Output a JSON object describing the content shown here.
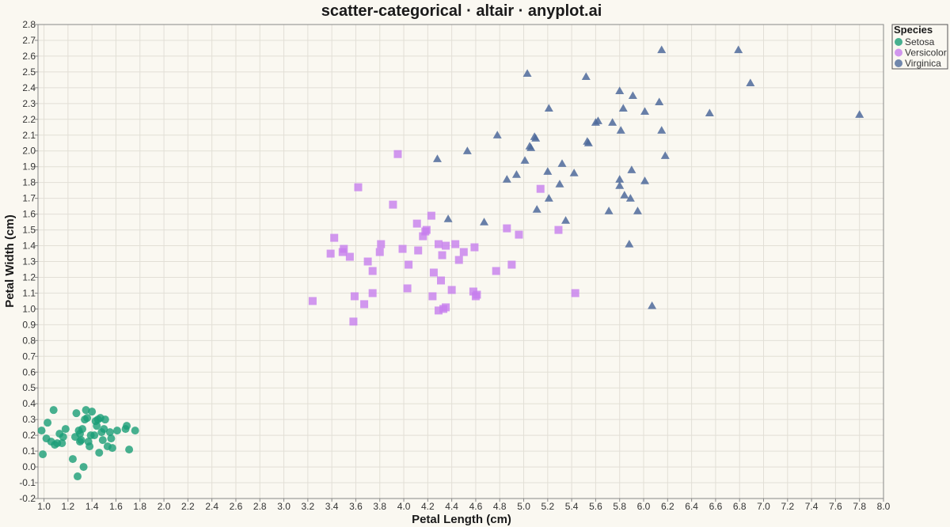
{
  "chart_data": {
    "type": "scatter",
    "title": "scatter-categorical · altair · anyplot.ai",
    "xlabel": "Petal Length (cm)",
    "ylabel": "Petal Width (cm)",
    "xlim": [
      0.95,
      8.0
    ],
    "ylim": [
      -0.2,
      2.8
    ],
    "xticks": [
      1.0,
      1.2,
      1.4,
      1.6,
      1.8,
      2.0,
      2.2,
      2.4,
      2.6,
      2.8,
      3.0,
      3.2,
      3.4,
      3.6,
      3.8,
      4.0,
      4.2,
      4.4,
      4.6,
      4.8,
      5.0,
      5.2,
      5.4,
      5.6,
      5.8,
      6.0,
      6.2,
      6.4,
      6.6,
      6.8,
      7.0,
      7.2,
      7.4,
      7.6,
      7.8,
      8.0
    ],
    "yticks": [
      -0.2,
      -0.1,
      0.0,
      0.1,
      0.2,
      0.3,
      0.4,
      0.5,
      0.6,
      0.7,
      0.8,
      0.9,
      1.0,
      1.1,
      1.2,
      1.3,
      1.4,
      1.5,
      1.6,
      1.7,
      1.8,
      1.9,
      2.0,
      2.1,
      2.2,
      2.3,
      2.4,
      2.5,
      2.6,
      2.7,
      2.8
    ],
    "grid": true,
    "legend": {
      "title": "Species",
      "placement": "top-right"
    },
    "series": [
      {
        "name": "Setosa",
        "color": "#1A9E77",
        "shape": "circle",
        "points": [
          [
            0.98,
            0.23
          ],
          [
            0.99,
            0.08
          ],
          [
            1.02,
            0.18
          ],
          [
            1.03,
            0.28
          ],
          [
            1.06,
            0.16
          ],
          [
            1.08,
            0.36
          ],
          [
            1.09,
            0.14
          ],
          [
            1.11,
            0.15
          ],
          [
            1.13,
            0.21
          ],
          [
            1.15,
            0.15
          ],
          [
            1.16,
            0.19
          ],
          [
            1.18,
            0.24
          ],
          [
            1.24,
            0.05
          ],
          [
            1.26,
            0.19
          ],
          [
            1.27,
            0.34
          ],
          [
            1.28,
            -0.06
          ],
          [
            1.29,
            0.23
          ],
          [
            1.3,
            0.21
          ],
          [
            1.3,
            0.16
          ],
          [
            1.31,
            0.17
          ],
          [
            1.32,
            0.24
          ],
          [
            1.33,
            0.0
          ],
          [
            1.34,
            0.3
          ],
          [
            1.35,
            0.36
          ],
          [
            1.36,
            0.31
          ],
          [
            1.37,
            0.16
          ],
          [
            1.38,
            0.13
          ],
          [
            1.39,
            0.2
          ],
          [
            1.4,
            0.35
          ],
          [
            1.42,
            0.2
          ],
          [
            1.43,
            0.29
          ],
          [
            1.44,
            0.26
          ],
          [
            1.45,
            0.3
          ],
          [
            1.46,
            0.09
          ],
          [
            1.47,
            0.31
          ],
          [
            1.48,
            0.22
          ],
          [
            1.49,
            0.17
          ],
          [
            1.5,
            0.24
          ],
          [
            1.51,
            0.3
          ],
          [
            1.53,
            0.13
          ],
          [
            1.55,
            0.22
          ],
          [
            1.56,
            0.18
          ],
          [
            1.57,
            0.12
          ],
          [
            1.61,
            0.23
          ],
          [
            1.68,
            0.24
          ],
          [
            1.69,
            0.26
          ],
          [
            1.71,
            0.11
          ],
          [
            1.76,
            0.23
          ]
        ]
      },
      {
        "name": "Versicolor",
        "color": "#C77EED",
        "shape": "square",
        "points": [
          [
            3.24,
            1.05
          ],
          [
            3.39,
            1.35
          ],
          [
            3.42,
            1.45
          ],
          [
            3.49,
            1.36
          ],
          [
            3.5,
            1.38
          ],
          [
            3.55,
            1.33
          ],
          [
            3.58,
            0.92
          ],
          [
            3.59,
            1.08
          ],
          [
            3.62,
            1.77
          ],
          [
            3.67,
            1.03
          ],
          [
            3.7,
            1.3
          ],
          [
            3.74,
            1.24
          ],
          [
            3.74,
            1.1
          ],
          [
            3.8,
            1.36
          ],
          [
            3.81,
            1.41
          ],
          [
            3.91,
            1.66
          ],
          [
            3.95,
            1.98
          ],
          [
            3.99,
            1.38
          ],
          [
            4.03,
            1.13
          ],
          [
            4.04,
            1.28
          ],
          [
            4.11,
            1.54
          ],
          [
            4.12,
            1.37
          ],
          [
            4.16,
            1.46
          ],
          [
            4.18,
            1.49
          ],
          [
            4.19,
            1.5
          ],
          [
            4.23,
            1.59
          ],
          [
            4.24,
            1.08
          ],
          [
            4.25,
            1.23
          ],
          [
            4.29,
            1.41
          ],
          [
            4.29,
            0.99
          ],
          [
            4.31,
            1.18
          ],
          [
            4.32,
            1.34
          ],
          [
            4.33,
            1.0
          ],
          [
            4.35,
            1.4
          ],
          [
            4.35,
            1.01
          ],
          [
            4.4,
            1.12
          ],
          [
            4.43,
            1.41
          ],
          [
            4.46,
            1.31
          ],
          [
            4.5,
            1.36
          ],
          [
            4.58,
            1.11
          ],
          [
            4.59,
            1.39
          ],
          [
            4.6,
            1.08
          ],
          [
            4.61,
            1.09
          ],
          [
            4.77,
            1.24
          ],
          [
            4.86,
            1.51
          ],
          [
            4.9,
            1.28
          ],
          [
            4.96,
            1.47
          ],
          [
            5.14,
            1.76
          ],
          [
            5.29,
            1.5
          ],
          [
            5.43,
            1.1
          ]
        ]
      },
      {
        "name": "Virginica",
        "color": "#4E6A9B",
        "shape": "triangle",
        "points": [
          [
            4.28,
            1.95
          ],
          [
            4.37,
            1.57
          ],
          [
            4.53,
            2.0
          ],
          [
            4.67,
            1.55
          ],
          [
            4.78,
            2.1
          ],
          [
            4.86,
            1.82
          ],
          [
            4.94,
            1.85
          ],
          [
            5.01,
            1.94
          ],
          [
            5.03,
            2.49
          ],
          [
            5.05,
            2.03
          ],
          [
            5.06,
            2.02
          ],
          [
            5.09,
            2.09
          ],
          [
            5.1,
            2.08
          ],
          [
            5.11,
            1.63
          ],
          [
            5.2,
            1.87
          ],
          [
            5.21,
            2.27
          ],
          [
            5.21,
            1.7
          ],
          [
            5.3,
            1.79
          ],
          [
            5.32,
            1.92
          ],
          [
            5.35,
            1.56
          ],
          [
            5.42,
            1.86
          ],
          [
            5.52,
            2.47
          ],
          [
            5.53,
            2.06
          ],
          [
            5.54,
            2.05
          ],
          [
            5.6,
            2.18
          ],
          [
            5.62,
            2.19
          ],
          [
            5.71,
            1.62
          ],
          [
            5.74,
            2.18
          ],
          [
            5.8,
            2.38
          ],
          [
            5.8,
            1.82
          ],
          [
            5.8,
            1.78
          ],
          [
            5.81,
            2.13
          ],
          [
            5.83,
            2.27
          ],
          [
            5.84,
            1.72
          ],
          [
            5.88,
            1.41
          ],
          [
            5.89,
            1.7
          ],
          [
            5.9,
            1.88
          ],
          [
            5.91,
            2.35
          ],
          [
            5.95,
            1.62
          ],
          [
            6.01,
            2.25
          ],
          [
            6.01,
            1.81
          ],
          [
            6.07,
            1.02
          ],
          [
            6.13,
            2.31
          ],
          [
            6.15,
            2.64
          ],
          [
            6.15,
            2.13
          ],
          [
            6.18,
            1.97
          ],
          [
            6.55,
            2.24
          ],
          [
            6.79,
            2.64
          ],
          [
            6.89,
            2.43
          ],
          [
            7.8,
            2.23
          ]
        ]
      }
    ]
  }
}
